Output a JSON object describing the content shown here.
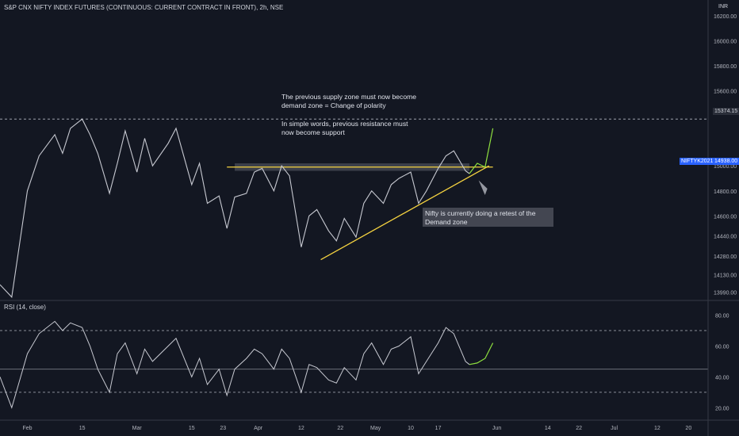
{
  "header": {
    "title": "S&P CNX NIFTY INDEX FUTURES (CONTINUOUS: CURRENT CONTRACT IN FRONT), 2h, NSE"
  },
  "price_axis": {
    "unit": "INR",
    "ticks": [
      "16200.00",
      "16000.00",
      "15800.00",
      "15600.00",
      "15374.15",
      "15000.00",
      "14938.00",
      "14800.00",
      "14600.00",
      "14440.00",
      "14280.00",
      "14130.00",
      "13990.00"
    ],
    "level_label": "15374.15",
    "current_price_label": "14938.00",
    "ticker_label": "NIFTYK2021"
  },
  "rsi_panel": {
    "title": "RSI (14, close)",
    "ticks": [
      "80.00",
      "60.00",
      "40.00",
      "20.00"
    ]
  },
  "x_axis": {
    "ticks": [
      "Feb",
      "15",
      "Mar",
      "15",
      "23",
      "Apr",
      "12",
      "22",
      "May",
      "10",
      "17",
      "Jun",
      "14",
      "22",
      "Jul",
      "12",
      "20"
    ]
  },
  "annotations": {
    "polarity_line1": "The previous supply zone must now become",
    "polarity_line2": "demand zone = Change of polarity",
    "support_line1": "In simple words, previous resistance must",
    "support_line2": "now become support",
    "retest_line1": "Nifty is currently doing a retest of the",
    "retest_line2": "Demand zone"
  },
  "colors": {
    "background": "#131722",
    "price_line": "#c7c9d1",
    "trendline": "#f5d340",
    "projection": "#8ee03f",
    "axis_text": "#b2b5be",
    "label_blue": "#2962ff"
  },
  "chart_data": [
    {
      "type": "line",
      "title": "S&P CNX NIFTY INDEX FUTURES (CONTINUOUS: CURRENT CONTRACT IN FRONT), 2h, NSE",
      "ylabel": "INR",
      "x_range": [
        "2021-01-25",
        "2021-07-25"
      ],
      "ylim": [
        13900,
        16200
      ],
      "series": [
        {
          "values": [
            [
              "2021-01-25",
              14050
            ],
            [
              "2021-01-28",
              13950
            ],
            [
              "2021-02-01",
              14800
            ],
            [
              "2021-02-04",
              15080
            ],
            [
              "2021-02-08",
              15250
            ],
            [
              "2021-02-10",
              15100
            ],
            [
              "2021-02-12",
              15300
            ],
            [
              "2021-02-15",
              15374
            ],
            [
              "2021-02-17",
              15250
            ],
            [
              "2021-02-19",
              15100
            ],
            [
              "2021-02-22",
              14780
            ],
            [
              "2021-02-24",
              15020
            ],
            [
              "2021-02-26",
              15280
            ],
            [
              "2021-03-01",
              14950
            ],
            [
              "2021-03-03",
              15220
            ],
            [
              "2021-03-05",
              15000
            ],
            [
              "2021-03-09",
              15180
            ],
            [
              "2021-03-11",
              15300
            ],
            [
              "2021-03-15",
              14850
            ],
            [
              "2021-03-17",
              15020
            ],
            [
              "2021-03-19",
              14700
            ],
            [
              "2021-03-22",
              14760
            ],
            [
              "2021-03-24",
              14500
            ],
            [
              "2021-03-26",
              14750
            ],
            [
              "2021-03-29",
              14780
            ],
            [
              "2021-03-31",
              14950
            ],
            [
              "2021-04-02",
              14980
            ],
            [
              "2021-04-05",
              14800
            ],
            [
              "2021-04-07",
              15000
            ],
            [
              "2021-04-09",
              14920
            ],
            [
              "2021-04-12",
              14350
            ],
            [
              "2021-04-14",
              14600
            ],
            [
              "2021-04-16",
              14650
            ],
            [
              "2021-04-19",
              14480
            ],
            [
              "2021-04-21",
              14400
            ],
            [
              "2021-04-23",
              14580
            ],
            [
              "2021-04-26",
              14430
            ],
            [
              "2021-04-28",
              14700
            ],
            [
              "2021-04-30",
              14800
            ],
            [
              "2021-05-03",
              14700
            ],
            [
              "2021-05-05",
              14850
            ],
            [
              "2021-05-07",
              14900
            ],
            [
              "2021-05-10",
              14950
            ],
            [
              "2021-05-12",
              14700
            ],
            [
              "2021-05-14",
              14800
            ],
            [
              "2021-05-17",
              14980
            ],
            [
              "2021-05-19",
              15080
            ],
            [
              "2021-05-21",
              15120
            ],
            [
              "2021-05-24",
              14960
            ],
            [
              "2021-05-25",
              14938
            ]
          ]
        },
        {
          "name": "projection",
          "values": [
            [
              "2021-05-25",
              14938
            ],
            [
              "2021-05-27",
              15020
            ],
            [
              "2021-05-29",
              14990
            ],
            [
              "2021-05-31",
              15300
            ]
          ]
        }
      ],
      "horizontal_lines": [
        {
          "value": 15374.15,
          "style": "dashed"
        },
        {
          "value": 14990,
          "style": "solid",
          "color": "#f5d340"
        }
      ],
      "zone": {
        "from": 14960,
        "to": 15020,
        "start": "2021-03-26",
        "end": "2021-05-25"
      },
      "trendline": [
        [
          "2021-04-17",
          14250
        ],
        [
          "2021-05-30",
          15000
        ]
      ],
      "grid": false
    },
    {
      "type": "line",
      "title": "RSI (14, close)",
      "ylim": [
        15,
        88
      ],
      "reference_lines": [
        70,
        30
      ],
      "series": [
        {
          "values": [
            [
              "2021-01-25",
              40
            ],
            [
              "2021-01-28",
              20
            ],
            [
              "2021-02-01",
              55
            ],
            [
              "2021-02-04",
              68
            ],
            [
              "2021-02-08",
              76
            ],
            [
              "2021-02-10",
              70
            ],
            [
              "2021-02-12",
              75
            ],
            [
              "2021-02-15",
              72
            ],
            [
              "2021-02-17",
              60
            ],
            [
              "2021-02-19",
              45
            ],
            [
              "2021-02-22",
              30
            ],
            [
              "2021-02-24",
              55
            ],
            [
              "2021-02-26",
              62
            ],
            [
              "2021-03-01",
              42
            ],
            [
              "2021-03-03",
              58
            ],
            [
              "2021-03-05",
              50
            ],
            [
              "2021-03-09",
              60
            ],
            [
              "2021-03-11",
              65
            ],
            [
              "2021-03-15",
              40
            ],
            [
              "2021-03-17",
              52
            ],
            [
              "2021-03-19",
              35
            ],
            [
              "2021-03-22",
              45
            ],
            [
              "2021-03-24",
              28
            ],
            [
              "2021-03-26",
              45
            ],
            [
              "2021-03-29",
              52
            ],
            [
              "2021-03-31",
              58
            ],
            [
              "2021-04-02",
              55
            ],
            [
              "2021-04-05",
              45
            ],
            [
              "2021-04-07",
              58
            ],
            [
              "2021-04-09",
              52
            ],
            [
              "2021-04-12",
              30
            ],
            [
              "2021-04-14",
              48
            ],
            [
              "2021-04-16",
              46
            ],
            [
              "2021-04-19",
              38
            ],
            [
              "2021-04-21",
              36
            ],
            [
              "2021-04-23",
              46
            ],
            [
              "2021-04-26",
              38
            ],
            [
              "2021-04-28",
              55
            ],
            [
              "2021-04-30",
              62
            ],
            [
              "2021-05-03",
              48
            ],
            [
              "2021-05-05",
              58
            ],
            [
              "2021-05-07",
              60
            ],
            [
              "2021-05-10",
              66
            ],
            [
              "2021-05-12",
              42
            ],
            [
              "2021-05-14",
              50
            ],
            [
              "2021-05-17",
              62
            ],
            [
              "2021-05-19",
              72
            ],
            [
              "2021-05-21",
              68
            ],
            [
              "2021-05-24",
              50
            ],
            [
              "2021-05-25",
              48
            ]
          ]
        },
        {
          "name": "projection",
          "values": [
            [
              "2021-05-25",
              48
            ],
            [
              "2021-05-27",
              49
            ],
            [
              "2021-05-29",
              52
            ],
            [
              "2021-05-31",
              62
            ]
          ]
        }
      ]
    }
  ]
}
